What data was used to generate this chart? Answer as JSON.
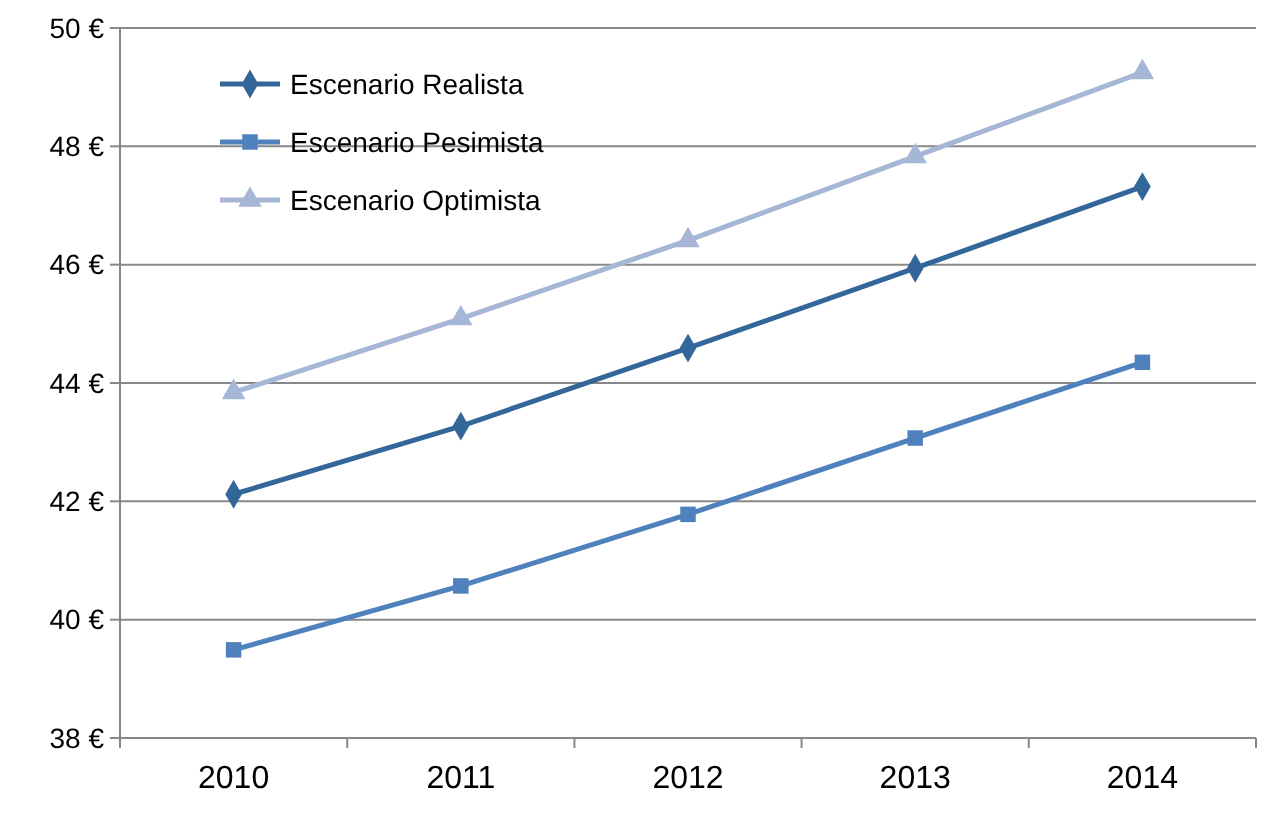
{
  "chart_data": {
    "type": "line",
    "categories": [
      "2010",
      "2011",
      "2012",
      "2013",
      "2014"
    ],
    "series": [
      {
        "name": "Escenario Realista",
        "color": "#336699",
        "marker": "diamond",
        "values": [
          42.12,
          43.27,
          44.59,
          45.94,
          47.32
        ]
      },
      {
        "name": "Escenario Pesimista",
        "color": "#4f81bd",
        "marker": "square",
        "values": [
          39.49,
          40.57,
          41.78,
          43.07,
          44.35
        ]
      },
      {
        "name": "Escenario Optimista",
        "color": "#a5b6d6",
        "marker": "triangle",
        "values": [
          43.84,
          45.09,
          46.41,
          47.83,
          49.25
        ]
      }
    ],
    "ylim": [
      38,
      50
    ],
    "yticks": [
      {
        "value": 38,
        "label": "38 €"
      },
      {
        "value": 40,
        "label": "40 €"
      },
      {
        "value": 42,
        "label": "42 €"
      },
      {
        "value": 44,
        "label": "44 €"
      },
      {
        "value": 46,
        "label": "46 €"
      },
      {
        "value": 48,
        "label": "48 €"
      },
      {
        "value": 50,
        "label": "50 €"
      }
    ],
    "grid": "y",
    "legend": "top left",
    "line_style": "solid"
  }
}
